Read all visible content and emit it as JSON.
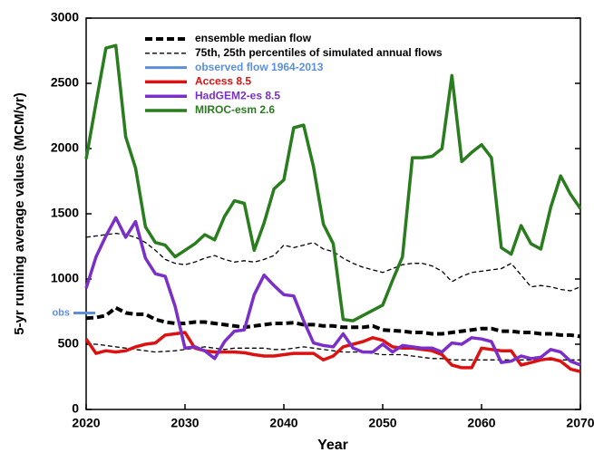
{
  "chart_data": {
    "type": "line",
    "xlabel": "Year",
    "ylabel": "5-yr running average values   (MCM/yr)",
    "xlim": [
      2020,
      2070
    ],
    "xticks": [
      2020,
      2030,
      2040,
      2050,
      2060,
      2070
    ],
    "ylim": [
      0,
      3000
    ],
    "yticks": [
      0,
      500,
      1000,
      1500,
      2000,
      2500,
      3000
    ],
    "x": [
      2020,
      2021,
      2022,
      2023,
      2024,
      2025,
      2026,
      2027,
      2028,
      2029,
      2030,
      2031,
      2032,
      2033,
      2034,
      2035,
      2036,
      2037,
      2038,
      2039,
      2040,
      2041,
      2042,
      2043,
      2044,
      2045,
      2046,
      2047,
      2048,
      2049,
      2050,
      2051,
      2052,
      2053,
      2054,
      2055,
      2056,
      2057,
      2058,
      2059,
      2060,
      2061,
      2062,
      2063,
      2064,
      2065,
      2066,
      2067,
      2068,
      2069,
      2070
    ],
    "series": [
      {
        "name": "ensemble median flow",
        "color": "#000000",
        "dashed": true,
        "line_width": 4,
        "values": [
          700,
          705,
          720,
          780,
          740,
          730,
          730,
          690,
          670,
          660,
          660,
          670,
          670,
          660,
          650,
          640,
          630,
          640,
          650,
          660,
          660,
          665,
          650,
          650,
          640,
          640,
          630,
          630,
          630,
          640,
          610,
          605,
          600,
          590,
          590,
          580,
          580,
          590,
          600,
          610,
          620,
          620,
          600,
          600,
          590,
          590,
          580,
          580,
          570,
          570,
          560
        ]
      },
      {
        "name": "75th, 25th percentiles of simulated annual flows",
        "color": "#000000",
        "dashed": true,
        "line_width": 1.3,
        "values": [
          1320,
          1330,
          1340,
          1350,
          1340,
          1320,
          1280,
          1220,
          1150,
          1120,
          1110,
          1130,
          1160,
          1180,
          1150,
          1130,
          1140,
          1130,
          1150,
          1180,
          1260,
          1240,
          1260,
          1280,
          1230,
          1210,
          1160,
          1120,
          1090,
          1070,
          1050,
          1080,
          1110,
          1120,
          1120,
          1100,
          1060,
          980,
          1020,
          1050,
          1060,
          1070,
          1080,
          1120,
          1030,
          940,
          950,
          940,
          920,
          910,
          940
        ],
        "lower_values": [
          500,
          500,
          490,
          480,
          470,
          460,
          450,
          440,
          445,
          450,
          460,
          470,
          480,
          470,
          460,
          470,
          470,
          470,
          470,
          460,
          460,
          470,
          480,
          470,
          460,
          450,
          440,
          440,
          440,
          430,
          420,
          420,
          420,
          410,
          400,
          390,
          390,
          380,
          380,
          380,
          380,
          380,
          380,
          380,
          380,
          380,
          380,
          380,
          380,
          380,
          380
        ]
      },
      {
        "name": "Access 8.5",
        "color": "#dd1111",
        "dashed": false,
        "line_width": 3.5,
        "values": [
          540,
          430,
          450,
          440,
          450,
          480,
          500,
          510,
          570,
          580,
          590,
          470,
          450,
          440,
          440,
          440,
          435,
          420,
          410,
          410,
          420,
          430,
          430,
          430,
          380,
          410,
          480,
          500,
          520,
          550,
          530,
          480,
          470,
          470,
          460,
          450,
          420,
          340,
          320,
          320,
          470,
          460,
          450,
          450,
          340,
          360,
          380,
          390,
          370,
          310,
          290
        ]
      },
      {
        "name": "HadGEM2-es 8.5",
        "color": "#7a2fc8",
        "dashed": false,
        "line_width": 3.5,
        "values": [
          930,
          1170,
          1330,
          1470,
          1320,
          1440,
          1160,
          1040,
          1020,
          790,
          470,
          480,
          450,
          390,
          520,
          600,
          610,
          880,
          1030,
          950,
          880,
          870,
          680,
          510,
          490,
          480,
          580,
          470,
          440,
          440,
          500,
          440,
          490,
          480,
          470,
          470,
          440,
          510,
          500,
          550,
          540,
          520,
          360,
          370,
          410,
          390,
          400,
          460,
          440,
          370,
          340
        ]
      },
      {
        "name": "MIROC-esm 2.6",
        "color": "#2a7d1e",
        "dashed": false,
        "line_width": 3.5,
        "values": [
          1920,
          2350,
          2770,
          2790,
          2090,
          1850,
          1400,
          1280,
          1260,
          1170,
          1220,
          1270,
          1340,
          1300,
          1480,
          1600,
          1580,
          1220,
          1430,
          1690,
          1760,
          2160,
          2180,
          1860,
          1420,
          1270,
          690,
          680,
          720,
          760,
          800,
          990,
          1170,
          1930,
          1930,
          1940,
          2000,
          2560,
          1900,
          1970,
          2030,
          1930,
          1240,
          1190,
          1410,
          1270,
          1230,
          1550,
          1790,
          1650,
          1540
        ]
      }
    ],
    "observed": {
      "name": "observed flow 1964-2013",
      "color": "#5b8fd9",
      "value": 740,
      "label": "obs"
    }
  }
}
